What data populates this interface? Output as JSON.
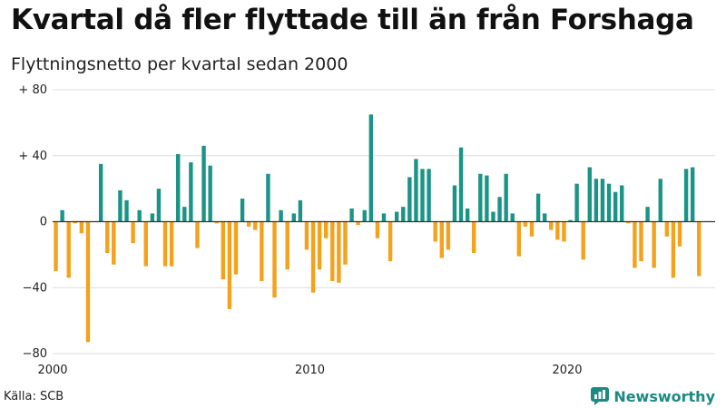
{
  "title": "Kvartal då fler flyttade till än från Forshaga",
  "subtitle": "Flyttningsnetto per kvartal sedan 2000",
  "source": "Källa: SCB",
  "brand": {
    "name": "Newsworthy",
    "icon": "newsworthy-logo-icon"
  },
  "colors": {
    "positive": "#1a9485",
    "negative": "#f4a11c",
    "grid": "#dddddd",
    "zero": "#333333"
  },
  "chart_data": {
    "type": "bar",
    "title": "Kvartal då fler flyttade till än från Forshaga",
    "subtitle": "Flyttningsnetto per kvartal sedan 2000",
    "xlabel": "",
    "ylabel": "",
    "ylim": [
      -80,
      80
    ],
    "yticks": [
      80,
      40,
      0,
      -40,
      -80
    ],
    "ytick_labels": [
      "+ 80",
      "+ 40",
      "0",
      "−40",
      "−80"
    ],
    "xlim": [
      2000,
      2025.75
    ],
    "xticks": [
      2000,
      2010,
      2020
    ],
    "xtick_labels": [
      "2000",
      "2010",
      "2020"
    ],
    "start_year": 2000,
    "values": [
      -30,
      7,
      -34,
      -1,
      -7,
      -73,
      0,
      35,
      -19,
      -26,
      19,
      13,
      -13,
      7,
      -27,
      5,
      20,
      -27,
      -27,
      41,
      9,
      36,
      -16,
      46,
      34,
      -1,
      -35,
      -53,
      -32,
      14,
      -3,
      -5,
      -36,
      29,
      -46,
      7,
      -29,
      5,
      13,
      -17,
      -43,
      -29,
      -10,
      -36,
      -37,
      -26,
      8,
      -2,
      7,
      65,
      -10,
      5,
      -24,
      6,
      9,
      27,
      38,
      32,
      32,
      -12,
      -22,
      -17,
      22,
      45,
      8,
      -19,
      29,
      28,
      6,
      15,
      29,
      5,
      -21,
      -3,
      -9,
      17,
      5,
      -5,
      -11,
      -12,
      1,
      23,
      -23,
      33,
      26,
      26,
      23,
      18,
      22,
      -1,
      -28,
      -24,
      9,
      -28,
      26,
      -9,
      -34,
      -15,
      32,
      33,
      -33
    ]
  }
}
